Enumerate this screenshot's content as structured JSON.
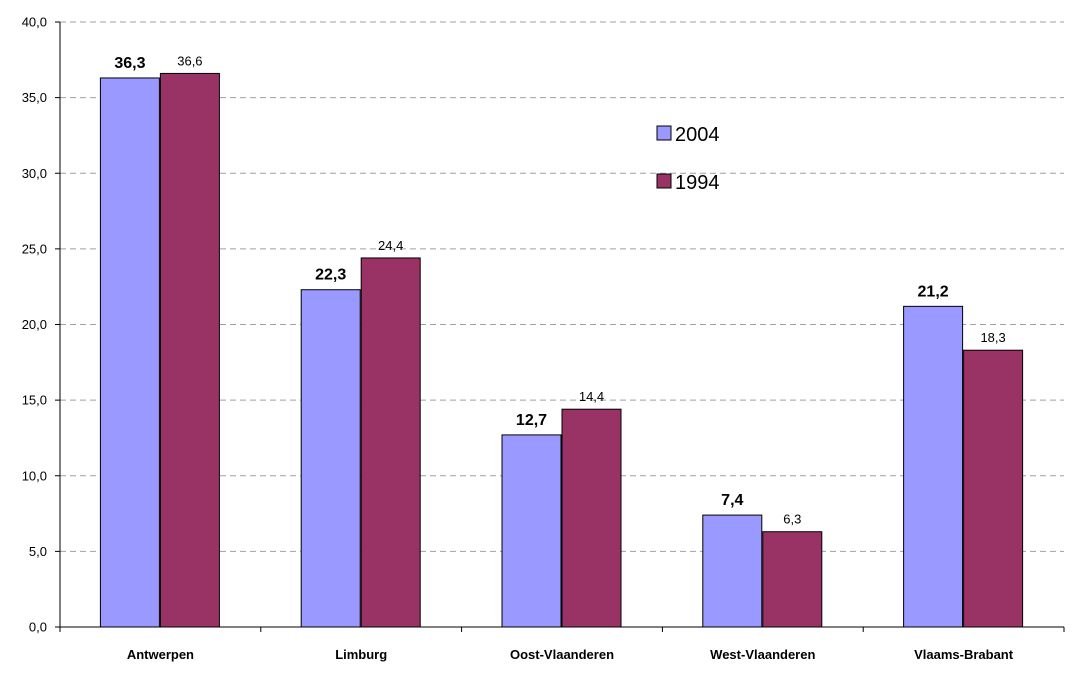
{
  "chart_data": {
    "type": "bar",
    "categories": [
      "Antwerpen",
      "Limburg",
      "Oost-Vlaanderen",
      "West-Vlaanderen",
      "Vlaams-Brabant"
    ],
    "series": [
      {
        "name": "2004",
        "values": [
          36.3,
          22.3,
          12.7,
          7.4,
          21.2
        ],
        "labels": [
          "36,3",
          "22,3",
          "12,7",
          "7,4",
          "21,2"
        ],
        "color": "#9999ff"
      },
      {
        "name": "1994",
        "values": [
          36.6,
          24.4,
          14.4,
          6.3,
          18.3
        ],
        "labels": [
          "36,6",
          "24,4",
          "14,4",
          "6,3",
          "18,3"
        ],
        "color": "#993366"
      }
    ],
    "yticks": [
      0,
      5,
      10,
      15,
      20,
      25,
      30,
      35,
      40
    ],
    "ytick_labels": [
      "0,0",
      "5,0",
      "10,0",
      "15,0",
      "20,0",
      "25,0",
      "30,0",
      "35,0",
      "40,0"
    ],
    "ylim": [
      0,
      40
    ],
    "title": "",
    "xlabel": "",
    "ylabel": "",
    "grid": "horizontal dashed",
    "legend_position": "upper-right of plot area"
  }
}
